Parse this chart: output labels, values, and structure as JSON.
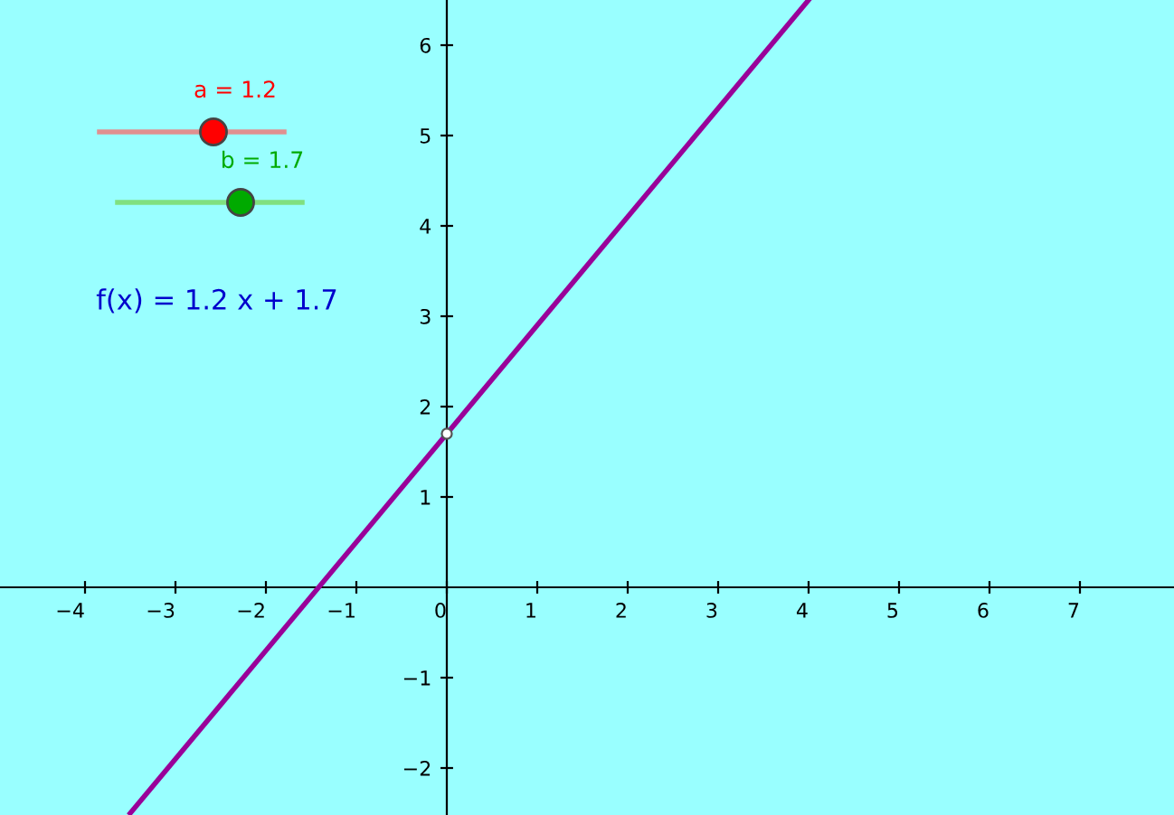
{
  "chart_data": {
    "type": "line",
    "series": [
      {
        "color": "#990099",
        "x": [
          -3.5,
          4
        ],
        "values": [
          -2.5,
          6.5
        ]
      },
      {
        "type": "scatter",
        "color": "#ffffff",
        "x": [
          0
        ],
        "values": [
          1.7
        ]
      }
    ],
    "xlim": [
      -4.94,
      8.04
    ],
    "ylim": [
      -2.52,
      6.5
    ],
    "xticks": [
      -4,
      -3,
      -2,
      -1,
      0,
      1,
      2,
      3,
      4,
      5,
      6,
      7
    ],
    "yticks": [
      -2,
      -1,
      1,
      2,
      3,
      4,
      5,
      6
    ],
    "annotations": [
      "a = 1.2",
      "b = 1.7",
      "f(x) = 1.2 x + 1.7"
    ],
    "grid": false
  }
}
